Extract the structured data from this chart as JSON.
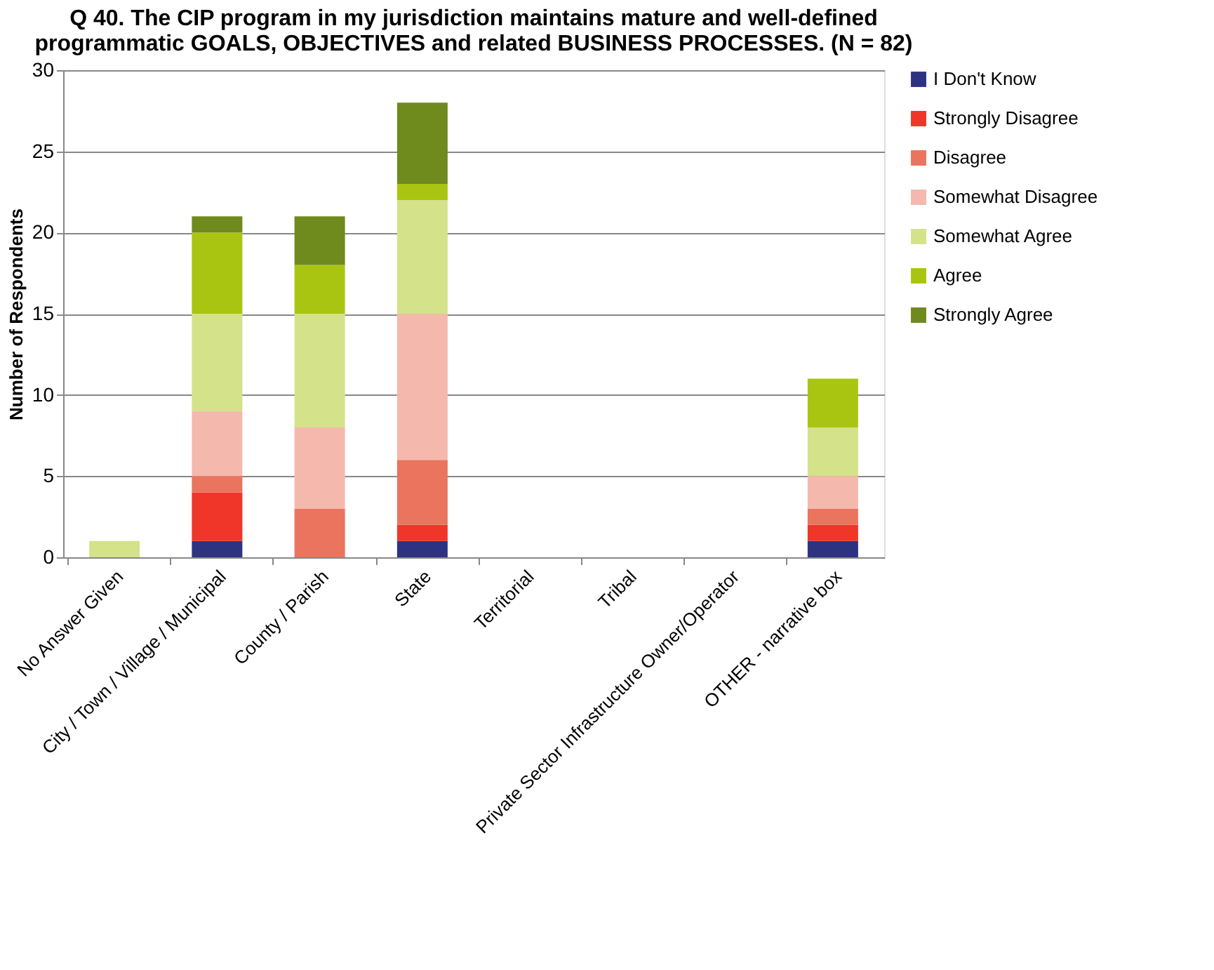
{
  "chart_data": {
    "type": "bar",
    "stacked": true,
    "title": "Q 40.  The CIP program in my jurisdiction maintains mature and well-defined programmatic GOALS, OBJECTIVES and related BUSINESS PROCESSES. (N = 82)",
    "ylabel": "Number of Respondents",
    "categories": [
      "No Answer Given",
      "City / Town / Village / Municipal",
      "County / Parish",
      "State",
      "Territorial",
      "Tribal",
      "Private Sector Infrastructure Owner/Operator",
      "OTHER - narrative box"
    ],
    "series": [
      {
        "name": "I Don't Know",
        "color": "#2e3381",
        "values": [
          0,
          1,
          0,
          1,
          0,
          0,
          0,
          1
        ]
      },
      {
        "name": "Strongly Disagree",
        "color": "#ef3629",
        "values": [
          0,
          3,
          0,
          1,
          0,
          0,
          0,
          1
        ]
      },
      {
        "name": "Disagree",
        "color": "#ea745e",
        "values": [
          0,
          1,
          3,
          4,
          0,
          0,
          0,
          1
        ]
      },
      {
        "name": "Somewhat Disagree",
        "color": "#f5b8ad",
        "values": [
          0,
          4,
          5,
          9,
          0,
          0,
          0,
          2
        ]
      },
      {
        "name": "Somewhat Agree",
        "color": "#d4e28a",
        "values": [
          1,
          6,
          7,
          7,
          0,
          0,
          0,
          3
        ]
      },
      {
        "name": "Agree",
        "color": "#aac511",
        "values": [
          0,
          5,
          3,
          1,
          0,
          0,
          0,
          3
        ]
      },
      {
        "name": "Strongly Agree",
        "color": "#6f8a1d",
        "values": [
          0,
          1,
          3,
          5,
          0,
          0,
          0,
          0
        ]
      }
    ],
    "ylim": [
      0,
      30
    ],
    "yticks": [
      0,
      5,
      10,
      15,
      20,
      25,
      30
    ],
    "grid": "y",
    "legend": "right"
  }
}
